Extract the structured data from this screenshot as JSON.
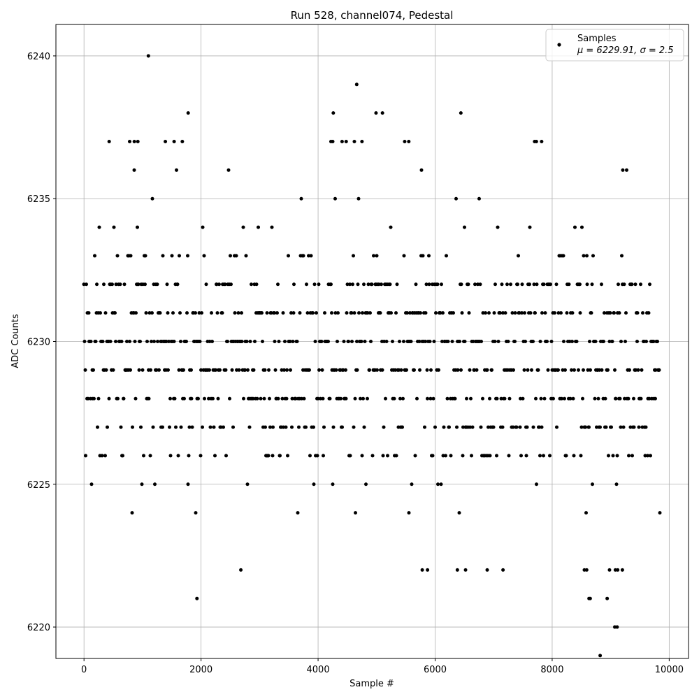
{
  "chart_data": {
    "type": "scatter",
    "title": "Run 528, channel074, Pedestal",
    "xlabel": "Sample #",
    "ylabel": "ADC Counts",
    "xlim": [
      -480,
      10330
    ],
    "ylim": [
      6218.9,
      6241.1
    ],
    "xticks": [
      0,
      2000,
      4000,
      6000,
      8000,
      10000
    ],
    "yticks": [
      6220,
      6225,
      6230,
      6235,
      6240
    ],
    "grid": true,
    "legend": {
      "placement": "top-right",
      "entries": [
        {
          "label": "Samples",
          "sublabel": "μ = 6229.91, σ = 2.5",
          "marker": "dot",
          "color": "#000000"
        }
      ]
    },
    "series": [
      {
        "name": "Samples",
        "color": "#000000",
        "n_samples": 9850,
        "baseline_distribution": {
          "6224": 0.007,
          "6225": 0.025,
          "6226": 0.06,
          "6227": 0.09,
          "6228": 0.13,
          "6229": 0.18,
          "6230": 0.19,
          "6231": 0.16,
          "6232": 0.1,
          "6233": 0.04,
          "6234": 0.018,
          "6235": 0.008,
          "6236": 0.004
        },
        "notable_points": [
          [
            1100,
            6240
          ],
          [
            4660,
            6239
          ],
          [
            1780,
            6238
          ],
          [
            4260,
            6238
          ],
          [
            4990,
            6238
          ],
          [
            5100,
            6238
          ],
          [
            6440,
            6238
          ],
          [
            1930,
            6221
          ],
          [
            8630,
            6221
          ],
          [
            8650,
            6221
          ],
          [
            8940,
            6221
          ],
          [
            9070,
            6220
          ],
          [
            9110,
            6220
          ],
          [
            8820,
            6219
          ],
          [
            2680,
            6222
          ],
          [
            5780,
            6222
          ],
          [
            5870,
            6222
          ],
          [
            6380,
            6222
          ],
          [
            6520,
            6222
          ],
          [
            6890,
            6222
          ],
          [
            7160,
            6222
          ],
          [
            8550,
            6222
          ],
          [
            8590,
            6222
          ],
          [
            8980,
            6222
          ],
          [
            9080,
            6222
          ],
          [
            9120,
            6222
          ],
          [
            9200,
            6222
          ],
          [
            430,
            6237
          ],
          [
            780,
            6237
          ],
          [
            860,
            6237
          ],
          [
            920,
            6237
          ],
          [
            1390,
            6237
          ],
          [
            1540,
            6237
          ],
          [
            1680,
            6237
          ],
          [
            4220,
            6237
          ],
          [
            4250,
            6237
          ],
          [
            4410,
            6237
          ],
          [
            4480,
            6237
          ],
          [
            4620,
            6237
          ],
          [
            4750,
            6237
          ],
          [
            5480,
            6237
          ],
          [
            5550,
            6237
          ],
          [
            7700,
            6237
          ],
          [
            7730,
            6237
          ],
          [
            7820,
            6237
          ]
        ]
      }
    ]
  }
}
